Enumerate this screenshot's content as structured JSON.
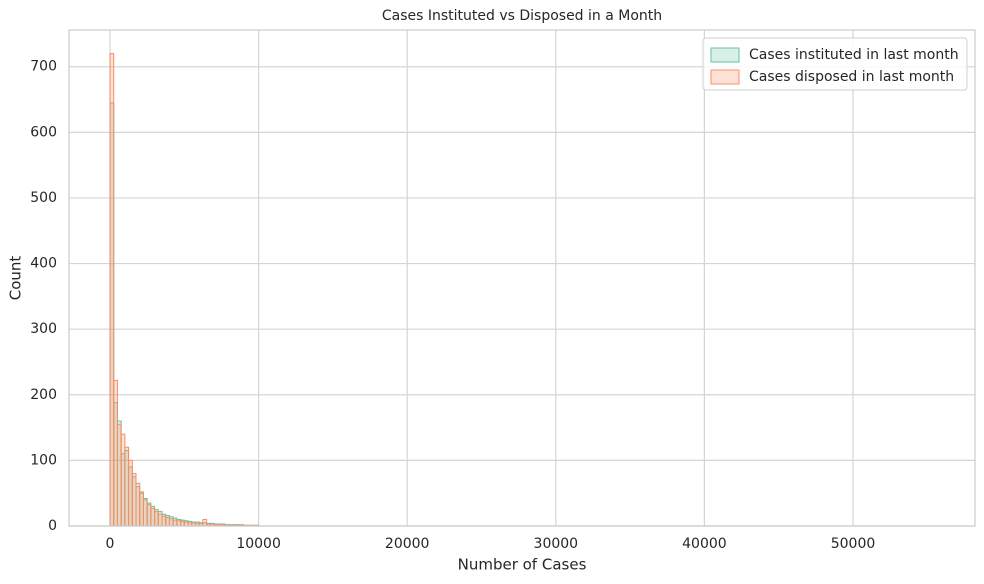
{
  "chart_data": {
    "type": "histogram",
    "title": "Cases Instituted vs Disposed in a Month",
    "xlabel": "Number of Cases",
    "ylabel": "Count",
    "bins": [
      0,
      250,
      500,
      750,
      1000,
      1250,
      1500,
      1750,
      2000,
      2250,
      2500,
      2750,
      3000,
      3250,
      3500,
      3750,
      4000,
      4250,
      4500,
      4750,
      5000,
      5250,
      5500,
      5750,
      6000,
      6250,
      6500,
      6750,
      7000,
      7250,
      7500,
      7750,
      8000,
      8250,
      8500,
      8750,
      9000,
      9250,
      9500,
      9750,
      10000
    ],
    "series": [
      {
        "name": "Cases instituted in last month",
        "color": "#66c2a5",
        "values": [
          645,
          188,
          160,
          110,
          115,
          90,
          75,
          60,
          50,
          42,
          35,
          30,
          25,
          22,
          18,
          16,
          14,
          12,
          10,
          9,
          8,
          7,
          6,
          6,
          5,
          5,
          4,
          4,
          3,
          3,
          3,
          2,
          2,
          2,
          2,
          2,
          1,
          1,
          1,
          1
        ]
      },
      {
        "name": "Cases disposed in last month",
        "color": "#fc8d62",
        "values": [
          720,
          222,
          155,
          140,
          120,
          100,
          80,
          65,
          52,
          40,
          33,
          27,
          22,
          18,
          15,
          13,
          11,
          9,
          8,
          7,
          6,
          5,
          5,
          4,
          4,
          10,
          3,
          3,
          2,
          2,
          2,
          1,
          1,
          1,
          1,
          1,
          1,
          1,
          1,
          1
        ]
      }
    ],
    "xlim": [
      -2760,
      58210
    ],
    "ylim": [
      0,
      756
    ],
    "xticks": [
      0,
      10000,
      20000,
      30000,
      40000,
      50000
    ],
    "yticks": [
      0,
      100,
      200,
      300,
      400,
      500,
      600,
      700
    ],
    "grid": true,
    "legend": "upper right"
  }
}
